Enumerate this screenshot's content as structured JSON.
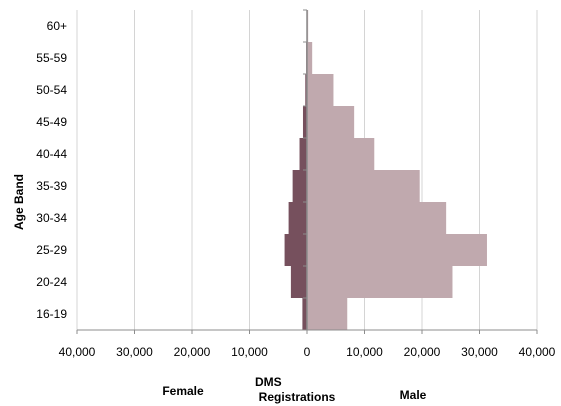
{
  "chart_data": {
    "type": "bar",
    "orientation": "horizontal",
    "subtype": "population-pyramid",
    "categories": [
      "16-19",
      "20-24",
      "25-29",
      "30-34",
      "35-39",
      "40-44",
      "45-49",
      "50-54",
      "55-59",
      "60+"
    ],
    "series": [
      {
        "name": "Female",
        "values": [
          800,
          2800,
          3900,
          3200,
          2500,
          1300,
          700,
          300,
          150,
          50
        ],
        "color": "#76505d"
      },
      {
        "name": "Male",
        "values": [
          7000,
          25300,
          31300,
          24200,
          19600,
          11700,
          8200,
          4600,
          900,
          200
        ],
        "color": "#c0a9ae"
      }
    ],
    "xlim": [
      -40000,
      40000
    ],
    "x_ticks": [
      -40000,
      -30000,
      -20000,
      -10000,
      0,
      10000,
      20000,
      30000,
      40000
    ],
    "x_tick_labels": [
      "40,000",
      "30,000",
      "20,000",
      "10,000",
      "0",
      "10,000",
      "20,000",
      "30,000",
      "40,000"
    ],
    "ylabel": "Age Band",
    "xlabel_left": "Female",
    "xlabel_center": "DMS Registrations",
    "xlabel_right": "Male",
    "grid": "vertical",
    "legend": "none"
  }
}
